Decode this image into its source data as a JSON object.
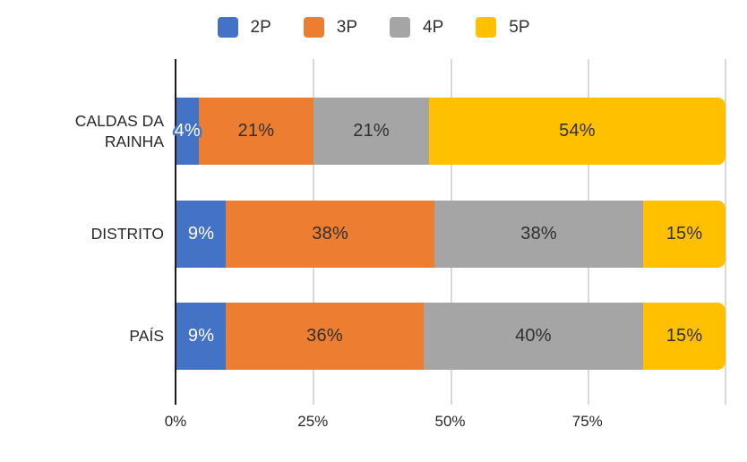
{
  "chart_data": {
    "type": "bar",
    "subtype": "horizontal-stacked-100",
    "title": "",
    "categories": [
      "CALDAS DA RAINHA",
      "DISTRITO",
      "PAÍS"
    ],
    "series": [
      {
        "name": "2P",
        "color": "#4472C4",
        "label_color": "#ffffff",
        "values": [
          4,
          9,
          9
        ]
      },
      {
        "name": "3P",
        "color": "#ED7D31",
        "label_color": "#303030",
        "values": [
          21,
          38,
          36
        ]
      },
      {
        "name": "4P",
        "color": "#A5A5A5",
        "label_color": "#303030",
        "values": [
          21,
          38,
          40
        ]
      },
      {
        "name": "5P",
        "color": "#FFC000",
        "label_color": "#303030",
        "values": [
          54,
          15,
          15
        ]
      }
    ],
    "data_label_format": "{value}%",
    "x_axis": {
      "min": 0,
      "max": 100,
      "tick_values": [
        0,
        25,
        50,
        75
      ],
      "tick_labels": [
        "0%",
        "25%",
        "50%",
        "75%"
      ],
      "gridline_values": [
        25,
        50,
        75,
        100
      ]
    },
    "legend": {
      "position": "top",
      "entries": [
        "2P",
        "3P",
        "4P",
        "5P"
      ]
    },
    "grid": true,
    "background_color": "#ffffff",
    "axis_line_color": "#1c1c1c",
    "gridline_color": "#d9d9d9",
    "text_color": "#262626"
  }
}
